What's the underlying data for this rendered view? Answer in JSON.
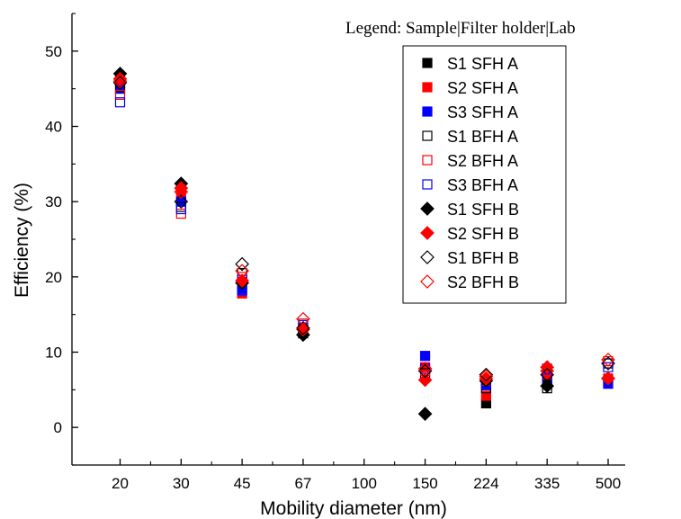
{
  "chart_data": {
    "type": "scatter",
    "title": "",
    "annotation": "Legend: Sample|Filter holder|Lab",
    "xlabel": "Mobility diameter (nm)",
    "ylabel": "Efficiency (%)",
    "categories": [
      "20",
      "30",
      "45",
      "67",
      "100",
      "150",
      "224",
      "335",
      "500"
    ],
    "ylim": [
      -5,
      55
    ],
    "yticks": [
      0,
      10,
      20,
      30,
      40,
      50
    ],
    "grid": false,
    "legend_position": "top-right",
    "series": [
      {
        "name": "S1 SFH A",
        "marker": "square",
        "filled": true,
        "color": "#000000",
        "values": [
          46.5,
          32.0,
          19.0,
          12.5,
          null,
          null,
          3.2,
          5.8,
          null
        ]
      },
      {
        "name": "S2 SFH A",
        "marker": "square",
        "filled": true,
        "color": "#ff0000",
        "values": [
          46.0,
          31.0,
          17.8,
          13.0,
          null,
          8.0,
          4.2,
          7.0,
          6.5
        ]
      },
      {
        "name": "S3 SFH A",
        "marker": "square",
        "filled": true,
        "color": "#0000ff",
        "values": [
          45.0,
          30.0,
          18.2,
          13.0,
          null,
          9.5,
          5.6,
          7.8,
          5.8
        ]
      },
      {
        "name": "S1 BFH A",
        "marker": "square",
        "filled": false,
        "color": "#000000",
        "values": [
          45.2,
          29.3,
          20.5,
          13.2,
          null,
          7.2,
          5.2,
          5.2,
          8.5
        ]
      },
      {
        "name": "S2 BFH A",
        "marker": "square",
        "filled": false,
        "color": "#ff0000",
        "values": [
          44.2,
          28.4,
          20.0,
          13.8,
          null,
          7.5,
          6.2,
          7.5,
          8.8
        ]
      },
      {
        "name": "S3 BFH A",
        "marker": "square",
        "filled": false,
        "color": "#0000ff",
        "values": [
          43.2,
          29.0,
          19.6,
          13.6,
          null,
          7.8,
          5.8,
          6.5,
          8.0
        ]
      },
      {
        "name": "S1 SFH B",
        "marker": "diamond",
        "filled": true,
        "color": "#000000",
        "values": [
          47.0,
          32.4,
          19.2,
          12.3,
          null,
          1.8,
          6.2,
          5.5,
          6.5
        ]
      },
      {
        "name": "S2 SFH B",
        "marker": "diamond",
        "filled": true,
        "color": "#ff0000",
        "values": [
          46.3,
          31.8,
          19.5,
          13.0,
          null,
          6.3,
          6.5,
          8.0,
          6.5
        ]
      },
      {
        "name": "S1 BFH B",
        "marker": "diamond",
        "filled": false,
        "color": "#000000",
        "values": [
          45.8,
          30.0,
          21.7,
          13.2,
          null,
          7.5,
          7.0,
          7.0,
          8.5
        ]
      },
      {
        "name": "S2 BFH B",
        "marker": "diamond",
        "filled": false,
        "color": "#ff0000",
        "values": [
          46.0,
          31.3,
          20.8,
          14.4,
          null,
          7.8,
          6.8,
          7.5,
          9.0
        ]
      }
    ]
  }
}
